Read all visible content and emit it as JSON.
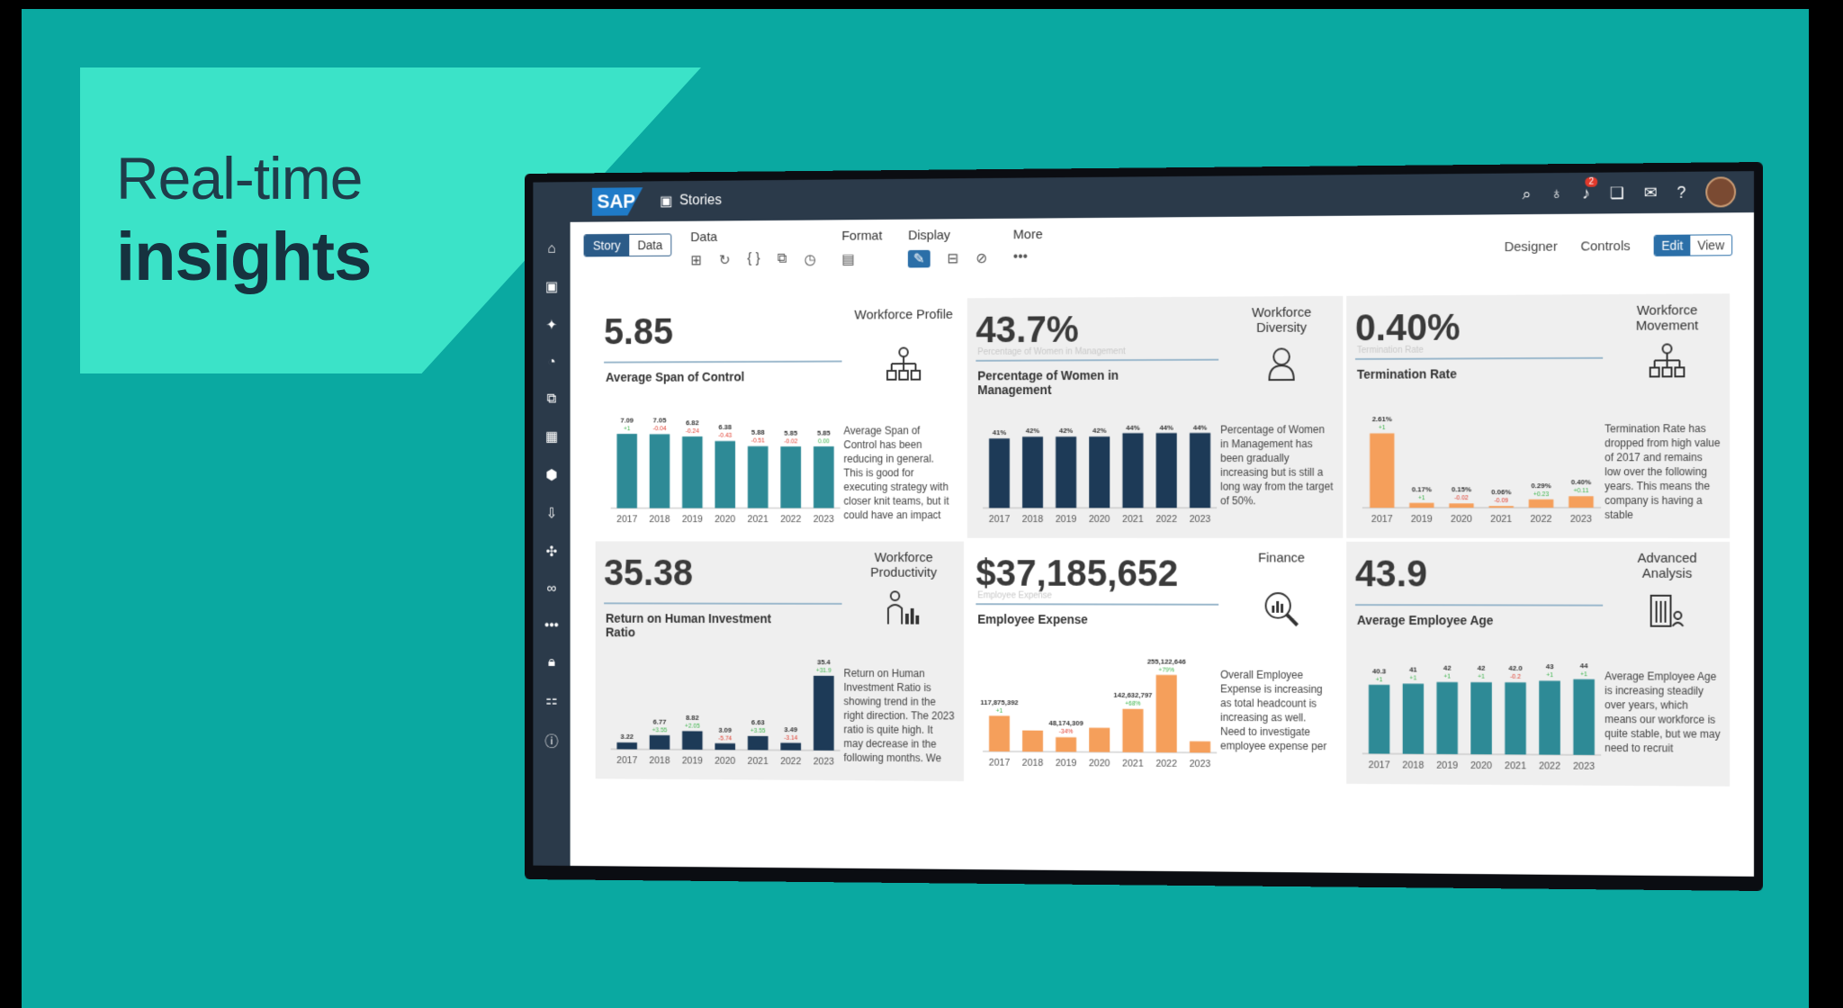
{
  "hero": {
    "line1": "Real-time",
    "line2": "insights"
  },
  "shell": {
    "logo": "SAP",
    "app": "Stories",
    "notif_count": "2"
  },
  "toolbar": {
    "story": "Story",
    "data_tab": "Data",
    "groups": {
      "data": "Data",
      "format": "Format",
      "display": "Display",
      "more": "More"
    },
    "designer": "Designer",
    "controls": "Controls",
    "edit": "Edit",
    "view": "View"
  },
  "colors": {
    "teal": "#2e8a96",
    "navy": "#1d3a57",
    "orange": "#f59f5b"
  },
  "tiles": [
    {
      "kpi": "5.85",
      "sub": "",
      "title": "Average Span of Control",
      "category": "Workforce Profile",
      "icon": "org-chart-icon",
      "desc": "Average Span of Control has been reducing in general. This is good for executing strategy with closer knit teams, but it could have an impact",
      "color": "#2e8a96",
      "chart_data": {
        "type": "bar",
        "categories": [
          "2017",
          "2018",
          "2019",
          "2020",
          "2021",
          "2022",
          "2023"
        ],
        "values": [
          7.09,
          7.05,
          6.82,
          6.38,
          5.88,
          5.85,
          5.85
        ],
        "value_labels": [
          "7.09",
          "7.05",
          "6.82",
          "6.38",
          "5.88",
          "5.85",
          "5.85"
        ],
        "deltas": [
          "+1",
          "-0.04",
          "-0.24",
          "-0.43",
          "-0.51",
          "-0.02",
          "0.00"
        ],
        "ylim": [
          0,
          8
        ]
      }
    },
    {
      "kpi": "43.7%",
      "sub": "Percentage of Women in Management",
      "title": "Percentage of Women in Management",
      "category": "Workforce Diversity",
      "icon": "woman-icon",
      "desc": "Percentage of Women in Management has been gradually increasing but is still a long way from the target of 50%.",
      "color": "#1d3a57",
      "chart_data": {
        "type": "bar",
        "categories": [
          "2017",
          "2018",
          "2019",
          "2020",
          "2021",
          "2022",
          "2023"
        ],
        "values": [
          41,
          42,
          42,
          42,
          44,
          44,
          44
        ],
        "value_labels": [
          "41%",
          "42%",
          "42%",
          "42%",
          "44%",
          "44%",
          "44%"
        ],
        "deltas": [
          "",
          "",
          "",
          "",
          "",
          "",
          ""
        ],
        "ylim": [
          0,
          50
        ]
      }
    },
    {
      "kpi": "0.40%",
      "sub": "Termination Rate",
      "title": "Termination Rate",
      "category": "Workforce Movement",
      "icon": "org-chart-icon",
      "desc": "Termination Rate has dropped from high value of 2017 and remains low over the following years. This means the company is having a stable",
      "color": "#f59f5b",
      "chart_data": {
        "type": "bar",
        "categories": [
          "2017",
          "2019",
          "2020",
          "2021",
          "2022",
          "2023"
        ],
        "values": [
          2.61,
          0.17,
          0.15,
          0.06,
          0.29,
          0.4
        ],
        "value_labels": [
          "2.61%",
          "0.17%",
          "0.15%",
          "0.06%",
          "0.29%",
          "0.40%"
        ],
        "deltas": [
          "+1",
          "+1",
          "-0.02",
          "-0.09",
          "+0.23",
          "+0.11"
        ],
        "ylim": [
          0,
          3
        ]
      }
    },
    {
      "kpi": "35.38",
      "sub": "",
      "title": "Return on Human Investment Ratio",
      "category": "Workforce Productivity",
      "icon": "chart-person-icon",
      "desc": "Return on Human Investment Ratio is showing trend in the right direction. The 2023 ratio is quite high. It may decrease in the following months. We",
      "color": "#1d3a57",
      "chart_data": {
        "type": "bar",
        "categories": [
          "2017",
          "2018",
          "2019",
          "2020",
          "2021",
          "2022",
          "2023"
        ],
        "values": [
          3.22,
          6.77,
          8.82,
          3.09,
          6.63,
          3.49,
          35.4
        ],
        "value_labels": [
          "3.22",
          "6.77",
          "8.82",
          "3.09",
          "6.63",
          "3.49",
          "35.4"
        ],
        "deltas": [
          "",
          "+3.55",
          "+2.05",
          "-5.74",
          "+3.55",
          "-3.14",
          "+31.9"
        ],
        "ylim": [
          0,
          40
        ]
      }
    },
    {
      "kpi": "$37,185,652",
      "sub": "Employee Expense",
      "title": "Employee Expense",
      "category": "Finance",
      "icon": "magnifier-chart-icon",
      "desc": "Overall Employee Expense is increasing as total headcount is increasing as well. Need to investigate employee expense per",
      "color": "#f59f5b",
      "chart_data": {
        "type": "bar",
        "categories": [
          "2017",
          "2018",
          "2019",
          "2020",
          "2021",
          "2022",
          "2023"
        ],
        "values": [
          117875392,
          70000000,
          48174309,
          80000000,
          142632797,
          255122646,
          37185652
        ],
        "value_labels": [
          "117,875,392",
          "",
          "48,174,309",
          "",
          "142,632,797",
          "255,122,646",
          ""
        ],
        "deltas": [
          "+1",
          "",
          "-34%",
          "",
          "+68%",
          "+79%",
          ""
        ],
        "ylim": [
          0,
          280000000
        ]
      }
    },
    {
      "kpi": "43.9",
      "sub": "",
      "title": "Average Employee Age",
      "category": "Advanced Analysis",
      "icon": "building-icon",
      "desc": "Average Employee Age is increasing steadily over years, which means our workforce is quite stable, but we may need to recruit",
      "color": "#2e8a96",
      "chart_data": {
        "type": "bar",
        "categories": [
          "2017",
          "2018",
          "2019",
          "2020",
          "2021",
          "2022",
          "2023"
        ],
        "values": [
          40.3,
          41,
          42,
          42,
          42.0,
          43,
          44
        ],
        "value_labels": [
          "40.3",
          "41",
          "42",
          "42",
          "42.0",
          "43",
          "44"
        ],
        "deltas": [
          "+1",
          "+1",
          "+1",
          "+1",
          "-0.2",
          "+1",
          "+1"
        ],
        "ylim": [
          0,
          50
        ]
      }
    }
  ]
}
